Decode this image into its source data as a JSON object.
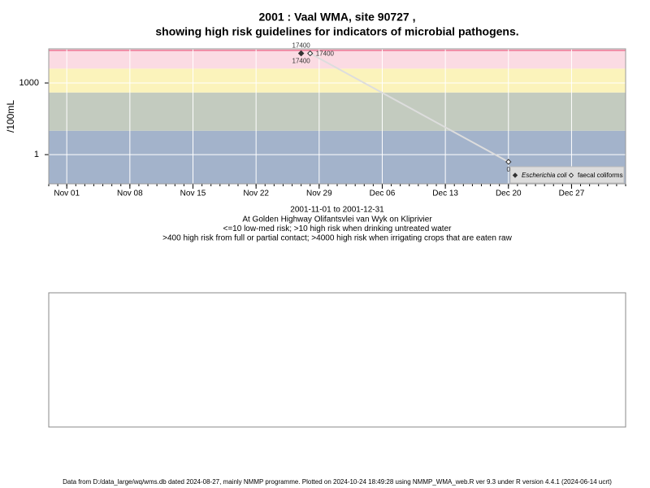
{
  "chart_data": {
    "type": "line",
    "title": "2001 : Vaal WMA, site 90727 ,",
    "subtitle": "showing high risk guidelines for indicators of microbial pathogens.",
    "y_label": "/100mL",
    "annotations": [
      "2001-11-01 to 2001-12-31",
      "At Golden Highway Olifantsvlei van Wyk on Kliprivier",
      "<=10 low-med risk; >10 high risk when drinking untreated water",
      ">400 high risk from full or partial contact; >4000 high risk when irrigating crops that are eaten raw"
    ],
    "footer": "Data from D:/data_large/wq/wms.db dated 2024-08-27, mainly NMMP programme. Plotted on 2024-10-24 18:49:28 using NMMP_WMA_web.R ver 9.3 under R version 4.4.1 (2024-06-14 ucrt)",
    "log_scale": true,
    "ylim": [
      0.06,
      27000
    ],
    "yticks": [
      1,
      1000
    ],
    "xlim": [
      "2001-10-30",
      "2002-01-02"
    ],
    "xticks": [
      {
        "value": "2001-11-01",
        "label": "Nov 01"
      },
      {
        "value": "2001-11-08",
        "label": "Nov 08"
      },
      {
        "value": "2001-11-15",
        "label": "Nov 15"
      },
      {
        "value": "2001-11-22",
        "label": "Nov 22"
      },
      {
        "value": "2001-11-29",
        "label": "Nov 29"
      },
      {
        "value": "2001-12-06",
        "label": "Dec 06"
      },
      {
        "value": "2001-12-13",
        "label": "Dec 13"
      },
      {
        "value": "2001-12-20",
        "label": "Dec 20"
      },
      {
        "value": "2001-12-27",
        "label": "Dec 27"
      }
    ],
    "thresholds": [
      10,
      400,
      4000
    ],
    "band_colors": [
      "#a3b3cb",
      "#c3cbbf",
      "#fbf3bb",
      "#fbdbe3"
    ],
    "grid": true,
    "legend": "bottom-right",
    "series": [
      {
        "name": "Escherichia coli",
        "color": "#333333",
        "marker": "filled",
        "x": [
          "2001-11-27",
          "2001-11-27"
        ],
        "values": [
          17400,
          17400
        ],
        "value_labels": [
          "17400",
          "17400"
        ],
        "label_pos": [
          "above",
          "below"
        ]
      },
      {
        "name": "faecal coliforms",
        "color": "#ffffff",
        "marker": "open",
        "x": [
          "2001-11-28",
          "2001-12-20"
        ],
        "values": [
          17400,
          0.5
        ],
        "value_labels": [
          "17400",
          "0"
        ],
        "label_pos": [
          "right",
          "below"
        ]
      }
    ]
  }
}
